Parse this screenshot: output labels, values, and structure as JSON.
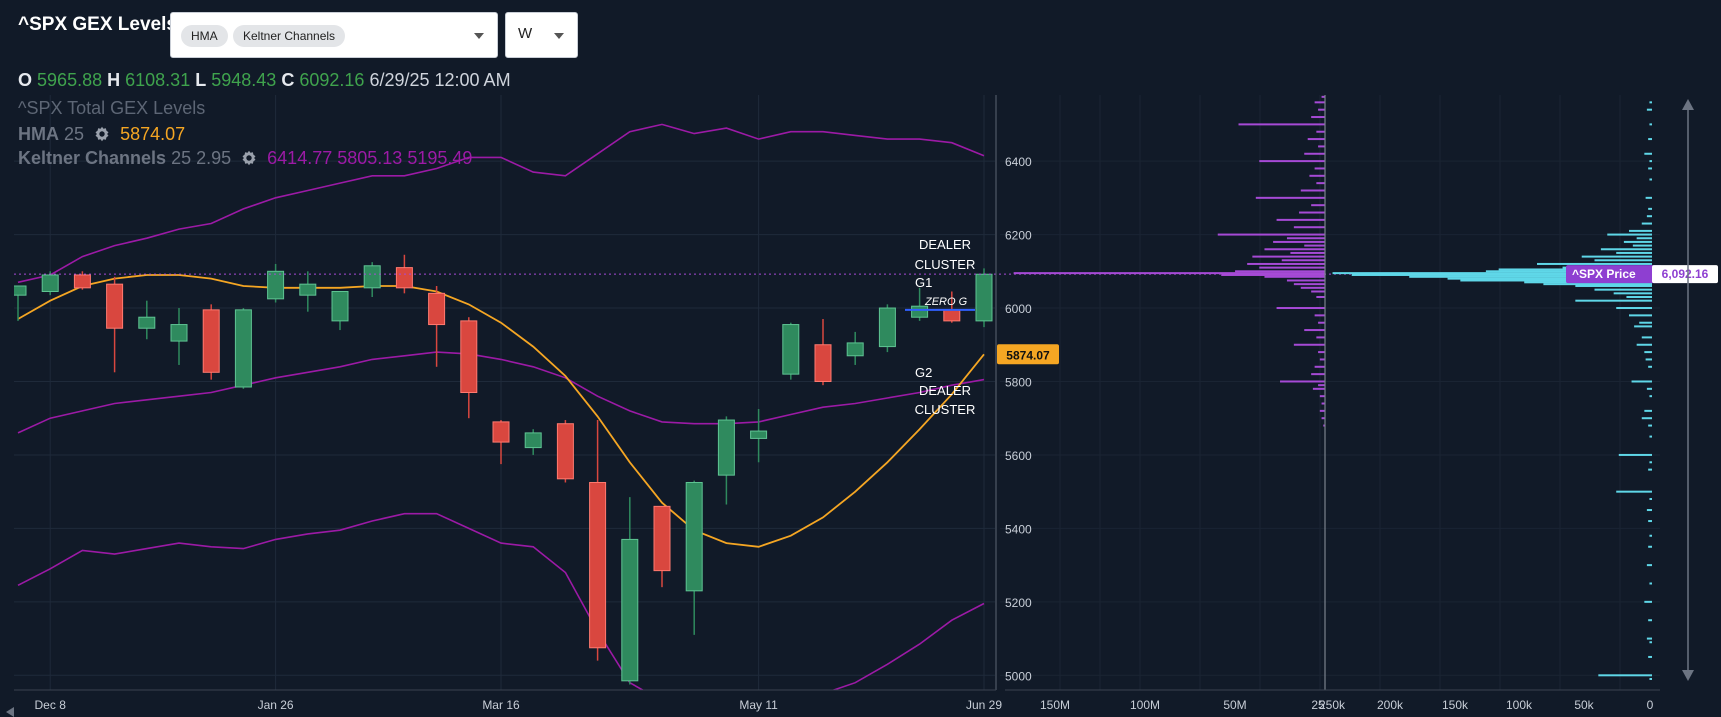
{
  "header": {
    "title": "^SPX GEX Levels",
    "indicator_chips": [
      "HMA",
      "Keltner Channels"
    ],
    "interval_value": "W"
  },
  "ohlc": {
    "o_label": "O",
    "o_value": "5965.88",
    "h_label": "H",
    "h_value": "6108.31",
    "l_label": "L",
    "l_value": "5948.43",
    "c_label": "C",
    "c_value": "6092.16",
    "datetime": "6/29/25 12:00 AM"
  },
  "legend": {
    "series_name": "^SPX Total GEX Levels",
    "hma_label": "HMA",
    "hma_period": "25",
    "hma_value": "5874.07",
    "kc_label": "Keltner Channels",
    "kc_params": "25 2.95",
    "kc_upper": "6414.77",
    "kc_mid": "5805.13",
    "kc_lower": "5195.49",
    "settings_icon": "gear-icon"
  },
  "colors": {
    "background": "#111a28",
    "up_candle": "#2f8a5e",
    "down_candle": "#d9473f",
    "hma": "#f5a623",
    "keltner": "#9c1aa6",
    "gex_call": "#a64ad6",
    "gex_put": "#5fd7e8",
    "zero_g": "#3060ff"
  },
  "chart_data": [
    {
      "type": "candlestick",
      "x_tick_labels": [
        "Dec 8",
        "Jan 26",
        "Mar 16",
        "May 11",
        "Jun 29"
      ],
      "y_ticks": [
        5000,
        5200,
        5400,
        5600,
        5800,
        6000,
        6200,
        6400
      ],
      "ylim": [
        4960,
        6580
      ],
      "candles": [
        {
          "o": 6035,
          "h": 6060,
          "l": 5965,
          "c": 6060
        },
        {
          "o": 6045,
          "h": 6100,
          "l": 6035,
          "c": 6090
        },
        {
          "o": 6090,
          "h": 6100,
          "l": 6050,
          "c": 6055
        },
        {
          "o": 6065,
          "h": 6085,
          "l": 5825,
          "c": 5945
        },
        {
          "o": 5945,
          "h": 6020,
          "l": 5915,
          "c": 5975
        },
        {
          "o": 5910,
          "h": 6000,
          "l": 5845,
          "c": 5955
        },
        {
          "o": 5995,
          "h": 6010,
          "l": 5805,
          "c": 5825
        },
        {
          "o": 5785,
          "h": 6000,
          "l": 5780,
          "c": 5995
        },
        {
          "o": 6025,
          "h": 6120,
          "l": 6015,
          "c": 6100
        },
        {
          "o": 6035,
          "h": 6100,
          "l": 5990,
          "c": 6065
        },
        {
          "o": 5965,
          "h": 6045,
          "l": 5940,
          "c": 6045
        },
        {
          "o": 6055,
          "h": 6125,
          "l": 6030,
          "c": 6115
        },
        {
          "o": 6110,
          "h": 6145,
          "l": 6040,
          "c": 6055
        },
        {
          "o": 6040,
          "h": 6060,
          "l": 5840,
          "c": 5955
        },
        {
          "o": 5965,
          "h": 5975,
          "l": 5700,
          "c": 5770
        },
        {
          "o": 5690,
          "h": 5695,
          "l": 5575,
          "c": 5635
        },
        {
          "o": 5620,
          "h": 5670,
          "l": 5600,
          "c": 5660
        },
        {
          "o": 5685,
          "h": 5695,
          "l": 5525,
          "c": 5535
        },
        {
          "o": 5525,
          "h": 5695,
          "l": 5040,
          "c": 5075
        },
        {
          "o": 4985,
          "h": 5485,
          "l": 4975,
          "c": 5370
        },
        {
          "o": 5460,
          "h": 5460,
          "l": 5240,
          "c": 5285
        },
        {
          "o": 5230,
          "h": 5530,
          "l": 5110,
          "c": 5525
        },
        {
          "o": 5545,
          "h": 5705,
          "l": 5465,
          "c": 5695
        },
        {
          "o": 5645,
          "h": 5725,
          "l": 5580,
          "c": 5665
        },
        {
          "o": 5820,
          "h": 5960,
          "l": 5805,
          "c": 5955
        },
        {
          "o": 5900,
          "h": 5970,
          "l": 5790,
          "c": 5800
        },
        {
          "o": 5870,
          "h": 5935,
          "l": 5845,
          "c": 5905
        },
        {
          "o": 5895,
          "h": 6010,
          "l": 5880,
          "c": 6000
        },
        {
          "o": 5975,
          "h": 6055,
          "l": 5965,
          "c": 6005
        },
        {
          "o": 5995,
          "h": 6045,
          "l": 5960,
          "c": 5965
        },
        {
          "o": 5965,
          "h": 6108,
          "l": 5948,
          "c": 6092
        }
      ],
      "hma": [
        5970,
        6020,
        6060,
        6080,
        6090,
        6090,
        6080,
        6060,
        6055,
        6055,
        6055,
        6060,
        6060,
        6045,
        6010,
        5960,
        5895,
        5815,
        5705,
        5580,
        5470,
        5395,
        5360,
        5350,
        5380,
        5430,
        5500,
        5580,
        5670,
        5765,
        5874
      ],
      "keltner_upper": [
        6070,
        6090,
        6140,
        6170,
        6190,
        6215,
        6230,
        6270,
        6300,
        6320,
        6340,
        6360,
        6360,
        6380,
        6410,
        6410,
        6370,
        6360,
        6420,
        6480,
        6500,
        6475,
        6490,
        6460,
        6480,
        6480,
        6470,
        6460,
        6460,
        6450,
        6414.77
      ],
      "keltner_mid": [
        5660,
        5700,
        5720,
        5740,
        5750,
        5760,
        5770,
        5790,
        5810,
        5825,
        5840,
        5860,
        5870,
        5880,
        5875,
        5860,
        5840,
        5810,
        5760,
        5720,
        5690,
        5685,
        5685,
        5690,
        5710,
        5730,
        5740,
        5755,
        5770,
        5790,
        5805.13
      ],
      "keltner_lower": [
        5245,
        5290,
        5340,
        5330,
        5345,
        5360,
        5350,
        5345,
        5370,
        5385,
        5395,
        5420,
        5440,
        5440,
        5400,
        5360,
        5350,
        5280,
        5120,
        4980,
        4930,
        4890,
        4860,
        4870,
        4920,
        4950,
        4980,
        5030,
        5085,
        5150,
        5195.49
      ],
      "price_marker": 6092.16,
      "annotations": {
        "dealer_cluster_top": "DEALER CLUSTER",
        "g1": "G1",
        "zero_g": "ZERO G",
        "zero_g_level": 5995,
        "g2": "G2",
        "dealer_cluster_bottom": "DEALER CLUSTER",
        "hma_badge": "5874.07"
      }
    },
    {
      "type": "horizontal-bar",
      "x_tick_labels": [
        "150M",
        "100M",
        "50M",
        "25"
      ],
      "xlim": [
        185000000,
        0
      ],
      "levels": [
        {
          "y": 6575,
          "v": 2000000
        },
        {
          "y": 6560,
          "v": 6000000
        },
        {
          "y": 6540,
          "v": 4000000
        },
        {
          "y": 6520,
          "v": 8000000
        },
        {
          "y": 6500,
          "v": 50000000
        },
        {
          "y": 6480,
          "v": 5000000
        },
        {
          "y": 6460,
          "v": 10000000
        },
        {
          "y": 6440,
          "v": 4000000
        },
        {
          "y": 6420,
          "v": 12000000
        },
        {
          "y": 6400,
          "v": 38000000
        },
        {
          "y": 6380,
          "v": 6000000
        },
        {
          "y": 6360,
          "v": 9000000
        },
        {
          "y": 6340,
          "v": 5000000
        },
        {
          "y": 6320,
          "v": 14000000
        },
        {
          "y": 6300,
          "v": 40000000
        },
        {
          "y": 6280,
          "v": 8000000
        },
        {
          "y": 6260,
          "v": 15000000
        },
        {
          "y": 6240,
          "v": 28000000
        },
        {
          "y": 6220,
          "v": 18000000
        },
        {
          "y": 6200,
          "v": 62000000
        },
        {
          "y": 6190,
          "v": 22000000
        },
        {
          "y": 6180,
          "v": 30000000
        },
        {
          "y": 6170,
          "v": 12000000
        },
        {
          "y": 6160,
          "v": 35000000
        },
        {
          "y": 6150,
          "v": 20000000
        },
        {
          "y": 6140,
          "v": 42000000
        },
        {
          "y": 6130,
          "v": 25000000
        },
        {
          "y": 6120,
          "v": 45000000
        },
        {
          "y": 6110,
          "v": 38000000
        },
        {
          "y": 6100,
          "v": 52000000
        },
        {
          "y": 6095,
          "v": 180000000
        },
        {
          "y": 6090,
          "v": 60000000
        },
        {
          "y": 6085,
          "v": 35000000
        },
        {
          "y": 6075,
          "v": 22000000
        },
        {
          "y": 6065,
          "v": 18000000
        },
        {
          "y": 6055,
          "v": 14000000
        },
        {
          "y": 6045,
          "v": 8000000
        },
        {
          "y": 6030,
          "v": 5000000
        },
        {
          "y": 6000,
          "v": 28000000
        },
        {
          "y": 5980,
          "v": 6000000
        },
        {
          "y": 5960,
          "v": 4000000
        },
        {
          "y": 5940,
          "v": 12000000
        },
        {
          "y": 5920,
          "v": 5000000
        },
        {
          "y": 5900,
          "v": 18000000
        },
        {
          "y": 5880,
          "v": 4000000
        },
        {
          "y": 5860,
          "v": 3000000
        },
        {
          "y": 5840,
          "v": 6000000
        },
        {
          "y": 5820,
          "v": 8000000
        },
        {
          "y": 5800,
          "v": 26000000
        },
        {
          "y": 5790,
          "v": 4000000
        },
        {
          "y": 5780,
          "v": 7000000
        },
        {
          "y": 5760,
          "v": 3000000
        },
        {
          "y": 5740,
          "v": 2000000
        },
        {
          "y": 5720,
          "v": 3000000
        },
        {
          "y": 5700,
          "v": 2000000
        },
        {
          "y": 5680,
          "v": 1000000
        }
      ]
    },
    {
      "type": "horizontal-bar",
      "x_tick_labels": [
        "250k",
        "200k",
        "150k",
        "100k",
        "50k",
        "0"
      ],
      "xlim": [
        252000,
        0
      ],
      "levels": [
        {
          "y": 6560,
          "v": 2000
        },
        {
          "y": 6540,
          "v": 4000
        },
        {
          "y": 6500,
          "v": 2000
        },
        {
          "y": 6460,
          "v": 3000
        },
        {
          "y": 6420,
          "v": 6000
        },
        {
          "y": 6400,
          "v": 2000
        },
        {
          "y": 6380,
          "v": 3000
        },
        {
          "y": 6350,
          "v": 2000
        },
        {
          "y": 6300,
          "v": 5000
        },
        {
          "y": 6270,
          "v": 3000
        },
        {
          "y": 6250,
          "v": 4000
        },
        {
          "y": 6230,
          "v": 8000
        },
        {
          "y": 6210,
          "v": 18000
        },
        {
          "y": 6200,
          "v": 35000
        },
        {
          "y": 6190,
          "v": 12000
        },
        {
          "y": 6180,
          "v": 22000
        },
        {
          "y": 6170,
          "v": 15000
        },
        {
          "y": 6160,
          "v": 40000
        },
        {
          "y": 6150,
          "v": 28000
        },
        {
          "y": 6140,
          "v": 55000
        },
        {
          "y": 6130,
          "v": 45000
        },
        {
          "y": 6120,
          "v": 90000
        },
        {
          "y": 6110,
          "v": 70000
        },
        {
          "y": 6105,
          "v": 120000
        },
        {
          "y": 6100,
          "v": 130000
        },
        {
          "y": 6095,
          "v": 250000
        },
        {
          "y": 6090,
          "v": 235000
        },
        {
          "y": 6085,
          "v": 190000
        },
        {
          "y": 6080,
          "v": 160000
        },
        {
          "y": 6075,
          "v": 150000
        },
        {
          "y": 6070,
          "v": 100000
        },
        {
          "y": 6065,
          "v": 85000
        },
        {
          "y": 6060,
          "v": 60000
        },
        {
          "y": 6050,
          "v": 45000
        },
        {
          "y": 6040,
          "v": 30000
        },
        {
          "y": 6030,
          "v": 20000
        },
        {
          "y": 6020,
          "v": 60000
        },
        {
          "y": 6000,
          "v": 28000
        },
        {
          "y": 5980,
          "v": 18000
        },
        {
          "y": 5960,
          "v": 10000
        },
        {
          "y": 5950,
          "v": 14000
        },
        {
          "y": 5920,
          "v": 8000
        },
        {
          "y": 5900,
          "v": 12000
        },
        {
          "y": 5880,
          "v": 6000
        },
        {
          "y": 5860,
          "v": 5000
        },
        {
          "y": 5840,
          "v": 3000
        },
        {
          "y": 5800,
          "v": 16000
        },
        {
          "y": 5780,
          "v": 4000
        },
        {
          "y": 5760,
          "v": 2000
        },
        {
          "y": 5720,
          "v": 6000
        },
        {
          "y": 5700,
          "v": 8000
        },
        {
          "y": 5680,
          "v": 3000
        },
        {
          "y": 5650,
          "v": 2000
        },
        {
          "y": 5600,
          "v": 26000
        },
        {
          "y": 5580,
          "v": 2000
        },
        {
          "y": 5560,
          "v": 3000
        },
        {
          "y": 5500,
          "v": 28000
        },
        {
          "y": 5480,
          "v": 2000
        },
        {
          "y": 5450,
          "v": 4000
        },
        {
          "y": 5420,
          "v": 3000
        },
        {
          "y": 5380,
          "v": 2000
        },
        {
          "y": 5350,
          "v": 3000
        },
        {
          "y": 5300,
          "v": 4000
        },
        {
          "y": 5250,
          "v": 2000
        },
        {
          "y": 5200,
          "v": 6000
        },
        {
          "y": 5150,
          "v": 3000
        },
        {
          "y": 5100,
          "v": 4000
        },
        {
          "y": 5090,
          "v": 2000
        },
        {
          "y": 5050,
          "v": 3000
        },
        {
          "y": 5000,
          "v": 42000
        },
        {
          "y": 4990,
          "v": 2000
        }
      ],
      "price_label": "^SPX Price",
      "price_value": "6,092.16"
    }
  ]
}
